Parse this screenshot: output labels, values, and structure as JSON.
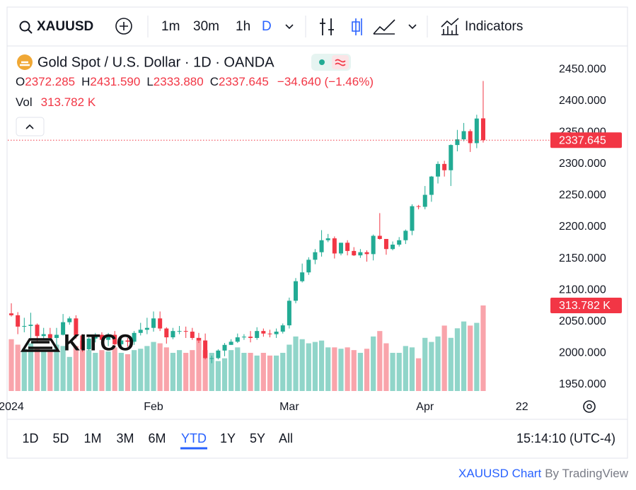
{
  "toolbar": {
    "symbol": "XAUUSD",
    "intervals": [
      "1m",
      "30m",
      "1h",
      "D"
    ],
    "indicators": "Indicators"
  },
  "chart_data": {
    "type": "candlestick",
    "title": "Gold Spot / U.S. Dollar · 1D · OANDA",
    "ohlc_letters": [
      "O",
      "H",
      "L",
      "C"
    ],
    "ohlc_value_labels": [
      "2372.285",
      "2431.590",
      "2333.880",
      "2337.645"
    ],
    "change_label": "−34.640 (−1.46%)",
    "up_color": "#22ab94",
    "down_color": "#f23645",
    "open": [
      2063,
      2060,
      2042,
      2043,
      2045,
      2027,
      2030,
      2024,
      2029,
      2049,
      2055,
      2028,
      2006,
      2023,
      2029,
      2021,
      2029,
      2014,
      2020,
      2018,
      2032,
      2037,
      2040,
      2055,
      2039,
      2025,
      2035,
      2035,
      2034,
      2024,
      2020,
      1992,
      1992,
      2004,
      2013,
      2018,
      2025,
      2026,
      2024,
      2035,
      2031,
      2030,
      2034,
      2044,
      2083,
      2114,
      2128,
      2148,
      2160,
      2179,
      2182,
      2158,
      2175,
      2162,
      2155,
      2160,
      2157,
      2186,
      2181,
      2165,
      2172,
      2179,
      2194,
      2233,
      2232,
      2251,
      2280,
      2300,
      2290,
      2330,
      2339,
      2352,
      2333,
      2372.285
    ],
    "high": [
      2079,
      2065,
      2056,
      2064,
      2047,
      2040,
      2040,
      2040,
      2062,
      2058,
      2060,
      2030,
      2025,
      2032,
      2033,
      2032,
      2035,
      2023,
      2024,
      2035,
      2048,
      2056,
      2066,
      2066,
      2041,
      2040,
      2043,
      2042,
      2040,
      2032,
      2031,
      1996,
      2006,
      2016,
      2022,
      2031,
      2030,
      2035,
      2041,
      2039,
      2037,
      2039,
      2047,
      2088,
      2119,
      2142,
      2152,
      2165,
      2195,
      2189,
      2185,
      2175,
      2179,
      2168,
      2165,
      2163,
      2188,
      2222,
      2181,
      2177,
      2184,
      2196,
      2236,
      2235,
      2265,
      2281,
      2304,
      2305,
      2331,
      2354,
      2365,
      2355,
      2378,
      2431.59
    ],
    "low": [
      2058,
      2030,
      2033,
      2024,
      2016,
      2021,
      2021,
      2013,
      2028,
      2045,
      2023,
      2002,
      2004,
      2017,
      2016,
      2011,
      2010,
      2010,
      2010,
      2013,
      2028,
      2030,
      2034,
      2035,
      2015,
      2022,
      2030,
      2024,
      2021,
      2016,
      1990,
      1984,
      1990,
      1995,
      2013,
      2016,
      2021,
      2017,
      2021,
      2026,
      2025,
      2024,
      2031,
      2039,
      2079,
      2112,
      2124,
      2141,
      2153,
      2176,
      2150,
      2155,
      2155,
      2154,
      2151,
      2145,
      2147,
      2180,
      2156,
      2163,
      2169,
      2173,
      2187,
      2228,
      2228,
      2240,
      2269,
      2280,
      2265,
      2320,
      2336,
      2319,
      2325,
      2333.88
    ],
    "close": [
      2060,
      2042,
      2043,
      2045,
      2027,
      2030,
      2024,
      2029,
      2049,
      2055,
      2028,
      2006,
      2023,
      2029,
      2021,
      2029,
      2014,
      2020,
      2018,
      2032,
      2037,
      2040,
      2055,
      2039,
      2025,
      2035,
      2035,
      2034,
      2024,
      2020,
      1992,
      1992,
      2004,
      2013,
      2018,
      2025,
      2026,
      2024,
      2035,
      2031,
      2030,
      2034,
      2044,
      2083,
      2114,
      2128,
      2148,
      2160,
      2179,
      2182,
      2158,
      2175,
      2162,
      2155,
      2160,
      2157,
      2186,
      2181,
      2165,
      2172,
      2179,
      2194,
      2233,
      2232,
      2251,
      2280,
      2300,
      2290,
      2330,
      2339,
      2352,
      2333,
      2372,
      2337.645
    ],
    "volume": {
      "name": "Vol",
      "last_label": "313.782 K",
      "values": [
        190,
        170,
        155,
        175,
        160,
        150,
        150,
        170,
        165,
        125,
        165,
        185,
        150,
        140,
        150,
        145,
        160,
        140,
        135,
        150,
        155,
        165,
        180,
        175,
        160,
        140,
        150,
        140,
        150,
        195,
        150,
        140,
        110,
        120,
        150,
        160,
        140,
        140,
        130,
        140,
        130,
        130,
        140,
        170,
        200,
        190,
        175,
        180,
        185,
        160,
        160,
        155,
        160,
        150,
        140,
        155,
        200,
        220,
        175,
        140,
        140,
        165,
        160,
        120,
        195,
        180,
        200,
        240,
        195,
        230,
        255,
        240,
        250,
        313.782
      ]
    },
    "ylim": [
      1932,
      2486
    ],
    "yticks": [
      {
        "value": 2450,
        "label": "2450.000"
      },
      {
        "value": 2400,
        "label": "2400.000"
      },
      {
        "value": 2350,
        "label": "2350.000"
      },
      {
        "value": 2300,
        "label": "2300.000"
      },
      {
        "value": 2250,
        "label": "2250.000"
      },
      {
        "value": 2200,
        "label": "2200.000"
      },
      {
        "value": 2150,
        "label": "2150.000"
      },
      {
        "value": 2100,
        "label": "2100.000"
      },
      {
        "value": 2050,
        "label": "2050.000"
      },
      {
        "value": 2000,
        "label": "2000.000"
      },
      {
        "value": 1950,
        "label": "1950.000"
      }
    ],
    "xlim": [
      -0.55,
      83.4
    ],
    "xticks": [
      {
        "value": 0,
        "label": "2024"
      },
      {
        "value": 22,
        "label": "Feb"
      },
      {
        "value": 43,
        "label": "Mar"
      },
      {
        "value": 64,
        "label": "Apr"
      },
      {
        "value": 79,
        "label": "22"
      }
    ],
    "watermark": "KITCO"
  },
  "range_bar": {
    "ranges": [
      "1D",
      "5D",
      "1M",
      "3M",
      "6M",
      "YTD",
      "1Y",
      "5Y",
      "All"
    ],
    "time": "15:14:10 (UTC-4)"
  },
  "footer": {
    "link": "XAUUSD Chart",
    "by": "By TradingView"
  }
}
